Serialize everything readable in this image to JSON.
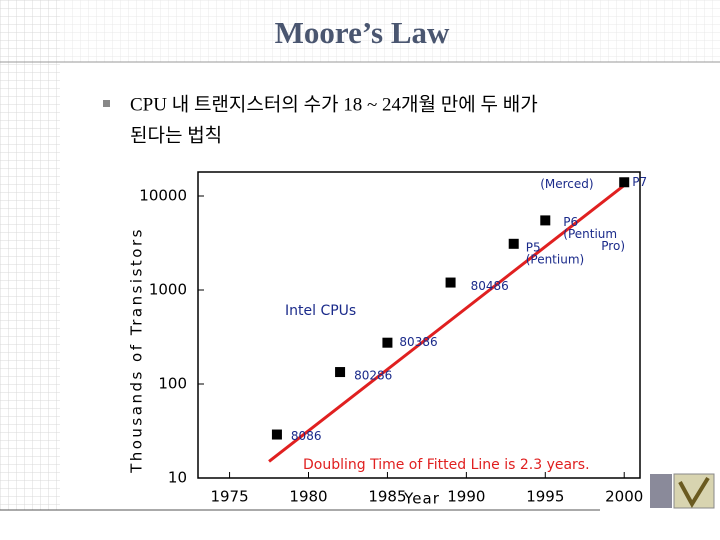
{
  "slide": {
    "title": "Moore’s Law",
    "bullet": [
      "CPU 내 트랜지스터의 수가 18 ~ 24개월 만에 두 배가",
      "된다는 법칙"
    ]
  },
  "chart_data": {
    "type": "scatter",
    "x_label": "Year",
    "y_label": "Thousands of Transistors",
    "annotations": [
      "Intel CPUs",
      "Doubling Time of Fitted Line is 2.3 years."
    ],
    "xlim": [
      1973,
      2001
    ],
    "xticks": [
      1975,
      1980,
      1985,
      1990,
      1995,
      2000
    ],
    "ylim": [
      10,
      18000
    ],
    "yticks": [
      10,
      100,
      1000,
      10000
    ],
    "y_scale": "log",
    "series": [
      {
        "name": "Intel CPUs",
        "color": "#000000",
        "x": [
          1978,
          1982,
          1985,
          1989,
          1993,
          1995,
          2000
        ],
        "values": [
          29,
          134,
          275,
          1200,
          3100,
          5500,
          14000
        ],
        "labels": [
          [
            "8086"
          ],
          [
            "80286"
          ],
          [
            "80386"
          ],
          [
            "80486"
          ],
          [
            "P5",
            "(Pentium)"
          ],
          [
            "P6",
            "(Pentium",
            "Pro)"
          ],
          [
            "(Merced)",
            "P7"
          ]
        ]
      }
    ],
    "fit": {
      "color": "#e02020",
      "x": [
        1977.5,
        2000
      ],
      "values": [
        15,
        13000
      ]
    }
  }
}
